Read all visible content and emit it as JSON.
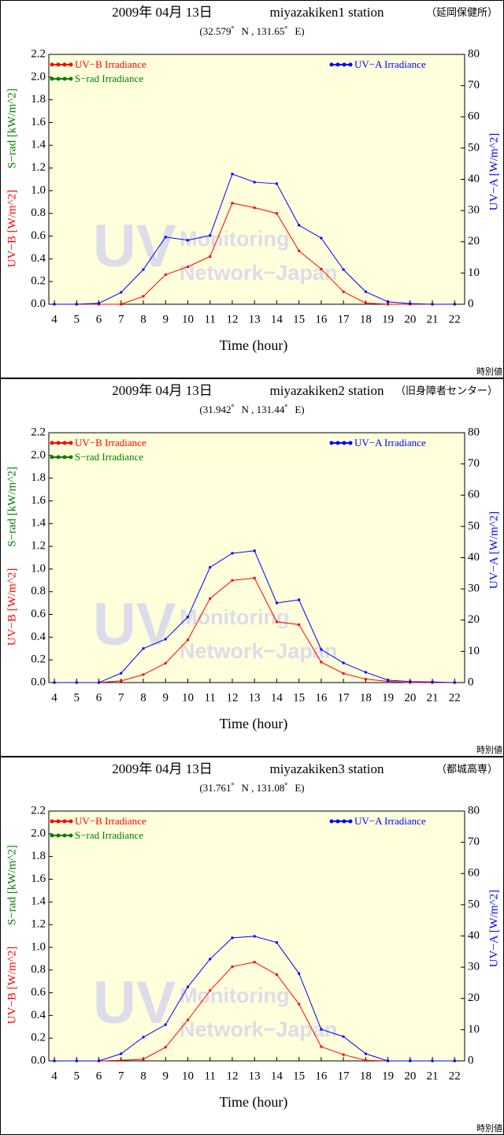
{
  "chart_data": [
    {
      "type": "line",
      "date": "2009年 04月 13日",
      "station": "miyazakiken1 station",
      "place": "（延岡保健所）",
      "location": "(32.579゜N , 131.65゜E)",
      "xlabel": "Time (hour)",
      "ylabel": "UV−B [W/m^2]",
      "ylabel2": "S−rad [kW/m^2]",
      "y2label": "UV−A [W/m^2]",
      "footnote": "時別値",
      "watermark": [
        "UV",
        "Monitoring",
        "Network−Japan"
      ],
      "plot_background": "#ffffdc",
      "x": [
        4,
        5,
        6,
        7,
        8,
        9,
        10,
        11,
        12,
        13,
        14,
        15,
        16,
        17,
        18,
        19,
        20,
        21,
        22
      ],
      "xlim": [
        3.75,
        22.45
      ],
      "xticks": [
        4,
        5,
        6,
        7,
        8,
        9,
        10,
        11,
        12,
        13,
        14,
        15,
        16,
        17,
        18,
        19,
        20,
        21,
        22
      ],
      "ylim": [
        0,
        2.2
      ],
      "yticks": [
        {
          "value": 0,
          "label": "0.0"
        },
        0.2,
        0.4,
        0.6,
        0.8,
        {
          "value": 1,
          "label": "1.0"
        },
        1.2,
        1.4,
        1.6,
        1.8,
        {
          "value": 2,
          "label": "2.0"
        },
        2.2
      ],
      "y2lim": [
        0,
        80
      ],
      "y2ticks": [
        0,
        10,
        20,
        30,
        40,
        50,
        60,
        70,
        80
      ],
      "series": [
        {
          "name": "UV−B Irradiance",
          "color": "#ff0000",
          "values": [
            0,
            0,
            0,
            0,
            0.07,
            0.26,
            0.33,
            0.42,
            0.89,
            0.85,
            0.8,
            0.47,
            0.31,
            0.11,
            0.01,
            0,
            0,
            0,
            0
          ]
        },
        {
          "name": "S−rad Irradiance",
          "color": "#008000",
          "values": [
            null,
            null,
            null,
            null,
            null,
            null,
            null,
            null,
            null,
            null,
            null,
            null,
            null,
            null,
            null,
            null,
            null,
            null,
            null
          ]
        },
        {
          "name": "UV−A Irradiance",
          "color": "#0000ff",
          "axis": "y2",
          "values": [
            0,
            0,
            0.3,
            3.8,
            11.1,
            21.5,
            20.5,
            22,
            41.7,
            39.1,
            38.6,
            25.3,
            21.2,
            11.1,
            4,
            0.8,
            0.2,
            0,
            0
          ]
        }
      ]
    },
    {
      "type": "line",
      "date": "2009年 04月 13日",
      "station": "miyazakiken2 station",
      "place": "（旧身障者センター）",
      "location": "(31.942゜N , 131.44゜E)",
      "xlabel": "Time (hour)",
      "ylabel": "UV−B [W/m^2]",
      "ylabel2": "S−rad [kW/m^2]",
      "y2label": "UV−A [W/m^2]",
      "footnote": "時別値",
      "watermark": [
        "UV",
        "Monitoring",
        "Network−Japan"
      ],
      "plot_background": "#ffffdc",
      "x": [
        4,
        5,
        6,
        7,
        8,
        9,
        10,
        11,
        12,
        13,
        14,
        15,
        16,
        17,
        18,
        19,
        20,
        21,
        22
      ],
      "xlim": [
        3.75,
        22.45
      ],
      "xticks": [
        4,
        5,
        6,
        7,
        8,
        9,
        10,
        11,
        12,
        13,
        14,
        15,
        16,
        17,
        18,
        19,
        20,
        21,
        22
      ],
      "ylim": [
        0,
        2.2
      ],
      "yticks": [
        {
          "value": 0,
          "label": "0.0"
        },
        0.2,
        0.4,
        0.6,
        0.8,
        {
          "value": 1,
          "label": "1.0"
        },
        1.2,
        1.4,
        1.6,
        1.8,
        {
          "value": 2,
          "label": "2.0"
        },
        2.2
      ],
      "y2lim": [
        0,
        80
      ],
      "y2ticks": [
        0,
        10,
        20,
        30,
        40,
        50,
        60,
        70,
        80
      ],
      "series": [
        {
          "name": "UV−B Irradiance",
          "color": "#ff0000",
          "values": [
            0,
            0,
            0,
            0.015,
            0.07,
            0.17,
            0.375,
            0.74,
            0.9,
            0.92,
            0.535,
            0.51,
            0.18,
            0.08,
            0.03,
            0.01,
            0,
            0,
            0
          ]
        },
        {
          "name": "S−rad Irradiance",
          "color": "#008000",
          "values": [
            null,
            null,
            null,
            null,
            null,
            null,
            null,
            null,
            null,
            null,
            null,
            null,
            null,
            null,
            null,
            null,
            null,
            null,
            null
          ]
        },
        {
          "name": "UV−A Irradiance",
          "color": "#0000ff",
          "axis": "y2",
          "values": [
            0,
            0,
            0,
            3,
            10.9,
            13.9,
            21,
            36.9,
            41.4,
            42.2,
            25.5,
            26.5,
            10.6,
            6.3,
            3.3,
            0.8,
            0.3,
            0.2,
            0
          ]
        }
      ]
    },
    {
      "type": "line",
      "date": "2009年 04月 13日",
      "station": "miyazakiken3 station",
      "place": "（都城高専）",
      "location": "(31.761゜N , 131.08゜E)",
      "xlabel": "Time (hour)",
      "ylabel": "UV−B [W/m^2]",
      "ylabel2": "S−rad [kW/m^2]",
      "y2label": "UV−A [W/m^2]",
      "footnote": "時別値",
      "watermark": [
        "UV",
        "Monitoring",
        "Network−Japan"
      ],
      "plot_background": "#ffffdc",
      "x": [
        4,
        5,
        6,
        7,
        8,
        9,
        10,
        11,
        12,
        13,
        14,
        15,
        16,
        17,
        18,
        19,
        20,
        21,
        22
      ],
      "xlim": [
        3.75,
        22.45
      ],
      "xticks": [
        4,
        5,
        6,
        7,
        8,
        9,
        10,
        11,
        12,
        13,
        14,
        15,
        16,
        17,
        18,
        19,
        20,
        21,
        22
      ],
      "ylim": [
        0,
        2.2
      ],
      "yticks": [
        {
          "value": 0,
          "label": "0.0"
        },
        0.2,
        0.4,
        0.6,
        0.8,
        {
          "value": 1,
          "label": "1.0"
        },
        1.2,
        1.4,
        1.6,
        1.8,
        {
          "value": 2,
          "label": "2.0"
        },
        2.2
      ],
      "y2lim": [
        0,
        80
      ],
      "y2ticks": [
        0,
        10,
        20,
        30,
        40,
        50,
        60,
        70,
        80
      ],
      "series": [
        {
          "name": "UV−B Irradiance",
          "color": "#ff0000",
          "values": [
            0,
            0,
            0,
            0.005,
            0.015,
            0.12,
            0.36,
            0.62,
            0.83,
            0.87,
            0.76,
            0.5,
            0.125,
            0.055,
            0.005,
            0,
            0,
            0,
            0
          ]
        },
        {
          "name": "S−rad Irradiance",
          "color": "#008000",
          "values": [
            null,
            null,
            null,
            null,
            null,
            null,
            null,
            null,
            null,
            null,
            null,
            null,
            null,
            null,
            null,
            null,
            null,
            null,
            null
          ]
        },
        {
          "name": "UV−A Irradiance",
          "color": "#0000ff",
          "axis": "y2",
          "values": [
            0,
            0,
            0,
            2.3,
            7.6,
            11.6,
            23.7,
            32.6,
            39.4,
            39.9,
            37.9,
            28,
            10.1,
            7.8,
            2.3,
            0,
            0,
            0,
            0
          ]
        }
      ]
    }
  ]
}
